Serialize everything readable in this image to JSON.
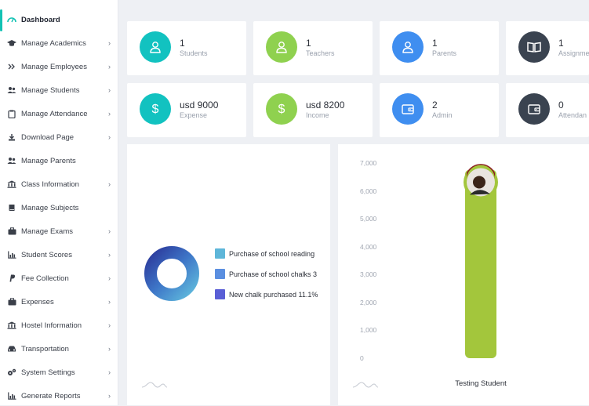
{
  "sidebar": {
    "items": [
      {
        "label": "Dashboard",
        "icon": "dashboard-icon",
        "chevron": false,
        "active": true
      },
      {
        "label": "Manage Academics",
        "icon": "graduation-cap-icon",
        "chevron": true
      },
      {
        "label": "Manage Employees",
        "icon": "double-chevron-icon",
        "chevron": true
      },
      {
        "label": "Manage Students",
        "icon": "users-icon",
        "chevron": true
      },
      {
        "label": "Manage Attendance",
        "icon": "clipboard-icon",
        "chevron": true
      },
      {
        "label": "Download Page",
        "icon": "download-icon",
        "chevron": true
      },
      {
        "label": "Manage Parents",
        "icon": "users-icon",
        "chevron": false
      },
      {
        "label": "Class Information",
        "icon": "institution-icon",
        "chevron": true
      },
      {
        "label": "Manage Subjects",
        "icon": "book-icon",
        "chevron": false
      },
      {
        "label": "Manage Exams",
        "icon": "briefcase-icon",
        "chevron": true
      },
      {
        "label": "Student Scores",
        "icon": "bar-chart-icon",
        "chevron": true
      },
      {
        "label": "Fee Collection",
        "icon": "paypal-icon",
        "chevron": true
      },
      {
        "label": "Expenses",
        "icon": "briefcase-icon",
        "chevron": true
      },
      {
        "label": "Hostel Information",
        "icon": "institution-icon",
        "chevron": true
      },
      {
        "label": "Transportation",
        "icon": "car-icon",
        "chevron": true
      },
      {
        "label": "System Settings",
        "icon": "cogs-icon",
        "chevron": true
      },
      {
        "label": "Generate Reports",
        "icon": "bar-chart-icon",
        "chevron": true
      }
    ],
    "chevron_glyph": "›"
  },
  "stats": [
    {
      "value": "1",
      "label": "Students",
      "icon": "user-icon",
      "color": "#12c2c0"
    },
    {
      "value": "1",
      "label": "Teachers",
      "icon": "user-icon",
      "color": "#8fd14f"
    },
    {
      "value": "1",
      "label": "Parents",
      "icon": "user-icon",
      "color": "#3f8ef0"
    },
    {
      "value": "1",
      "label": "Assignme",
      "icon": "book-open-icon",
      "color": "#3a4350"
    },
    {
      "value": "usd 9000",
      "label": "Expense",
      "icon": "dollar-icon",
      "color": "#12c2c0"
    },
    {
      "value": "usd 8200",
      "label": "Income",
      "icon": "dollar-icon",
      "color": "#8fd14f"
    },
    {
      "value": "2",
      "label": "Admin",
      "icon": "wallet-icon",
      "color": "#3f8ef0"
    },
    {
      "value": "0",
      "label": "Attendan",
      "icon": "wallet-icon",
      "color": "#3a4350"
    }
  ],
  "donut": {
    "legend": [
      {
        "label": "Purchase of school reading",
        "color": "#5eb6d9"
      },
      {
        "label": "Purchase of school chalks  3",
        "color": "#5b8fe0"
      },
      {
        "label": "New chalk purchased  11.1%",
        "color": "#5a5fd6"
      }
    ]
  },
  "chart_data": {
    "type": "bar",
    "categories": [
      "Testing Student"
    ],
    "values": [
      6200
    ],
    "yticks": [
      "7,000",
      "6,000",
      "5,000",
      "4,000",
      "3,000",
      "2,000",
      "1,000",
      "0"
    ],
    "ylim": [
      0,
      7000
    ],
    "bar_color": "#a3c63c"
  }
}
